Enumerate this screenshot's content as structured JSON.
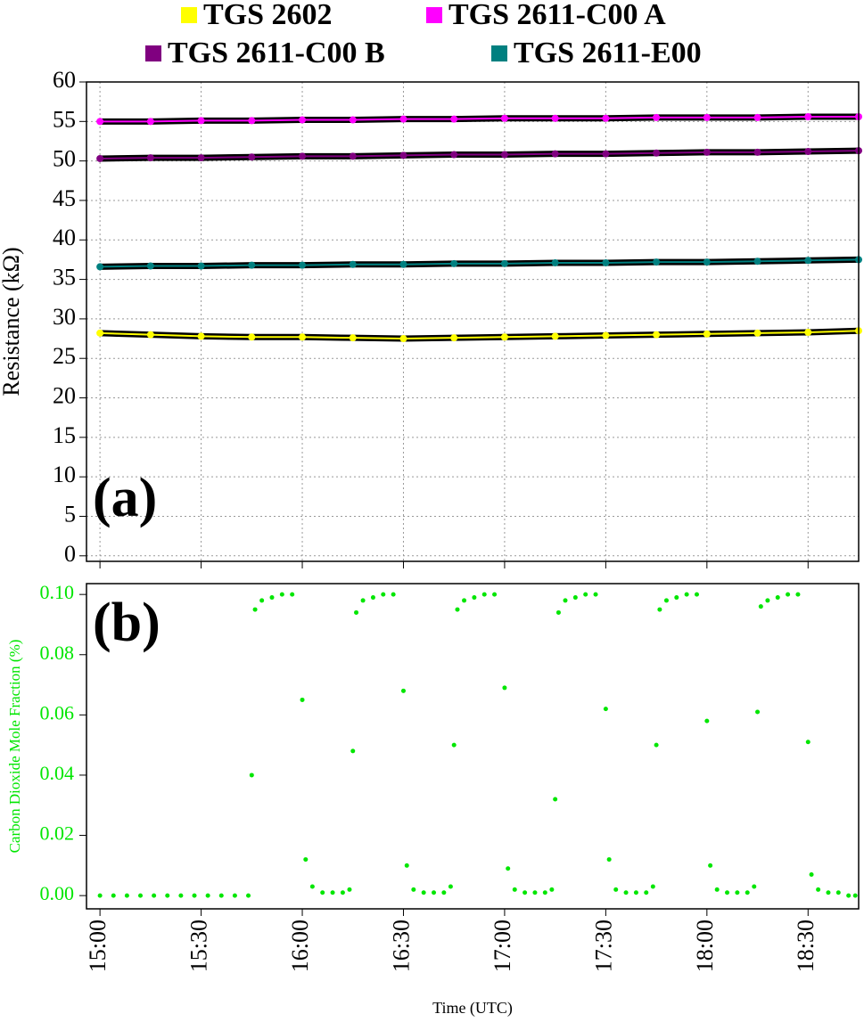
{
  "chart_data": [
    {
      "type": "line",
      "ylabel": "Resistance (kΩ)",
      "annotation": "(a)",
      "x": [
        "15:00",
        "15:15",
        "15:30",
        "15:45",
        "16:00",
        "16:15",
        "16:30",
        "16:45",
        "17:00",
        "17:15",
        "17:30",
        "17:45",
        "18:00",
        "18:15",
        "18:30",
        "18:45"
      ],
      "series": [
        {
          "name": "TGS 2602",
          "color": "#ffff00",
          "values": [
            28.2,
            28.0,
            27.8,
            27.7,
            27.7,
            27.6,
            27.5,
            27.6,
            27.7,
            27.8,
            27.9,
            28.0,
            28.1,
            28.2,
            28.3,
            28.5
          ]
        },
        {
          "name": "TGS 2611-C00 A",
          "color": "#ff00ff",
          "values": [
            55.0,
            55.0,
            55.1,
            55.1,
            55.2,
            55.2,
            55.3,
            55.3,
            55.4,
            55.4,
            55.4,
            55.5,
            55.5,
            55.5,
            55.6,
            55.6
          ]
        },
        {
          "name": "TGS 2611-C00 B",
          "color": "#800080",
          "values": [
            50.3,
            50.4,
            50.4,
            50.5,
            50.6,
            50.6,
            50.7,
            50.8,
            50.8,
            50.9,
            50.9,
            51.0,
            51.1,
            51.1,
            51.2,
            51.3
          ]
        },
        {
          "name": "TGS 2611-E00",
          "color": "#008080",
          "values": [
            36.6,
            36.7,
            36.7,
            36.8,
            36.8,
            36.9,
            36.9,
            37.0,
            37.0,
            37.1,
            37.1,
            37.2,
            37.2,
            37.3,
            37.4,
            37.5
          ]
        }
      ],
      "xlim": [
        "14:56",
        "18:45"
      ],
      "ylim": [
        -0.7,
        60
      ],
      "yticks": [
        0,
        5,
        10,
        15,
        20,
        25,
        30,
        35,
        40,
        45,
        50,
        55,
        60
      ],
      "grid": true
    },
    {
      "type": "scatter",
      "ylabel": "Carbon Dioxide Mole Fraction (%)",
      "xlabel": "Time (UTC)",
      "annotation": "(b)",
      "color": "#00e600",
      "x": [
        "15:00",
        "15:04",
        "15:08",
        "15:12",
        "15:16",
        "15:20",
        "15:24",
        "15:28",
        "15:32",
        "15:36",
        "15:40",
        "15:44",
        "15:45",
        "15:46",
        "15:48",
        "15:51",
        "15:54",
        "15:57",
        "16:00",
        "16:01",
        "16:03",
        "16:06",
        "16:09",
        "16:12",
        "16:14",
        "16:15",
        "16:16",
        "16:18",
        "16:21",
        "16:24",
        "16:27",
        "16:30",
        "16:31",
        "16:33",
        "16:36",
        "16:39",
        "16:42",
        "16:44",
        "16:45",
        "16:46",
        "16:48",
        "16:51",
        "16:54",
        "16:57",
        "17:00",
        "17:01",
        "17:03",
        "17:06",
        "17:09",
        "17:12",
        "17:14",
        "17:15",
        "17:16",
        "17:18",
        "17:21",
        "17:24",
        "17:27",
        "17:30",
        "17:31",
        "17:33",
        "17:36",
        "17:39",
        "17:42",
        "17:44",
        "17:45",
        "17:46",
        "17:48",
        "17:51",
        "17:54",
        "17:57",
        "18:00",
        "18:01",
        "18:03",
        "18:06",
        "18:09",
        "18:12",
        "18:14",
        "18:15",
        "18:16",
        "18:18",
        "18:21",
        "18:24",
        "18:27",
        "18:30",
        "18:31",
        "18:33",
        "18:36",
        "18:39",
        "18:42",
        "18:44"
      ],
      "values": [
        0,
        0,
        0,
        0,
        0,
        0,
        0,
        0,
        0,
        0,
        0,
        0,
        0.04,
        0.095,
        0.098,
        0.099,
        0.1,
        0.1,
        0.065,
        0.012,
        0.003,
        0.001,
        0.001,
        0.001,
        0.002,
        0.048,
        0.094,
        0.098,
        0.099,
        0.1,
        0.1,
        0.068,
        0.01,
        0.002,
        0.001,
        0.001,
        0.001,
        0.003,
        0.05,
        0.095,
        0.098,
        0.099,
        0.1,
        0.1,
        0.069,
        0.009,
        0.002,
        0.001,
        0.001,
        0.001,
        0.002,
        0.032,
        0.094,
        0.098,
        0.099,
        0.1,
        0.1,
        0.062,
        0.012,
        0.002,
        0.001,
        0.001,
        0.001,
        0.003,
        0.05,
        0.095,
        0.098,
        0.099,
        0.1,
        0.1,
        0.058,
        0.01,
        0.002,
        0.001,
        0.001,
        0.001,
        0.003,
        0.061,
        0.096,
        0.098,
        0.099,
        0.1,
        0.1,
        0.051,
        0.007,
        0.002,
        0.001,
        0.001,
        0,
        0
      ],
      "xlim": [
        "14:56",
        "18:45"
      ],
      "ylim": [
        -0.0044,
        0.1036
      ],
      "xticks": [
        "15:00",
        "15:30",
        "16:00",
        "16:30",
        "17:00",
        "17:30",
        "18:00",
        "18:30"
      ],
      "yticks": [
        {
          "value": 0,
          "label": "0.00"
        },
        {
          "value": 0.02,
          "label": "0.02"
        },
        {
          "value": 0.04,
          "label": "0.04"
        },
        {
          "value": 0.06,
          "label": "0.06"
        },
        {
          "value": 0.08,
          "label": "0.08"
        },
        {
          "value": 0.1,
          "label": "0.10"
        }
      ]
    }
  ]
}
